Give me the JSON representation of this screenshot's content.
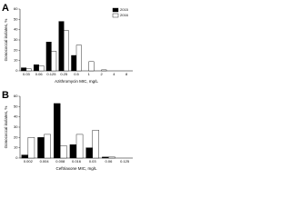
{
  "chart_data": [
    {
      "type": "bar",
      "panel": "A",
      "x_label": "Azithromycin MIC, mg/L",
      "y_label": "Gonococcal isolates, %",
      "categories": [
        "0.03",
        "0.06",
        "0.125",
        "0.25",
        "0.5",
        "1",
        "2",
        "4",
        "8"
      ],
      "series": [
        {
          "name": "2015",
          "color": "#000000",
          "values": [
            3,
            6,
            28,
            48,
            15,
            0,
            0,
            0,
            0
          ]
        },
        {
          "name": "2016",
          "color": "#ffffff",
          "values": [
            2,
            5,
            19,
            39,
            25,
            9,
            1,
            0,
            0
          ]
        }
      ],
      "ylim": [
        0,
        60
      ],
      "yticks": [
        0,
        10,
        20,
        30,
        40,
        50,
        60
      ],
      "legend": "upper right"
    },
    {
      "type": "bar",
      "panel": "B",
      "x_label": "Ceftriaxone MIC, mg/L",
      "y_label": "Gonococcal isolates, %",
      "categories": [
        "0.002",
        "0.004",
        "0.008",
        "0.016",
        "0.03",
        "0.06",
        "0.125"
      ],
      "series": [
        {
          "color": "#000000",
          "values": [
            3,
            20,
            53,
            13,
            10,
            1,
            0
          ]
        },
        {
          "color": "#ffffff",
          "values": [
            20,
            23,
            12,
            23,
            27,
            1,
            0
          ]
        }
      ],
      "ylim": [
        0,
        60
      ],
      "yticks": [
        0,
        10,
        20,
        30,
        40,
        50,
        60
      ]
    }
  ]
}
